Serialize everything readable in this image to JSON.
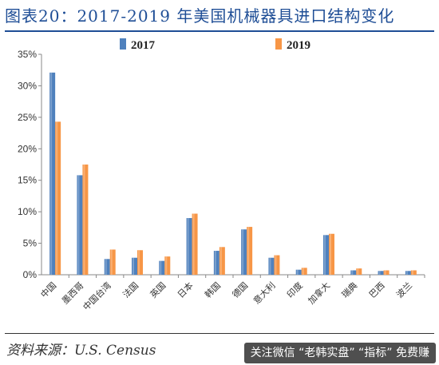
{
  "page": {
    "title": "图表20：2017-2019 年美国机械器具进口结构变化"
  },
  "footer": {
    "source": "资料来源：U.S. Census",
    "watermark": "关注微信 “老韩实盘” “指标” 免费赚"
  },
  "colors": {
    "series_2017": "#4f81bd",
    "series_2019": "#f79646",
    "title": "#1f4e96"
  },
  "chart_data": {
    "type": "bar",
    "title": "图表20：2017-2019 年美国机械器具进口结构变化",
    "xlabel": "",
    "ylabel": "",
    "ylim": [
      0,
      35
    ],
    "yticks": [
      "0%",
      "5%",
      "10%",
      "15%",
      "20%",
      "25%",
      "30%",
      "35%"
    ],
    "ytick_values": [
      0,
      5,
      10,
      15,
      20,
      25,
      30,
      35
    ],
    "legend_position": "top-center",
    "grid": false,
    "categories": [
      "中国",
      "墨西哥",
      "中国台湾",
      "法国",
      "英国",
      "日本",
      "韩国",
      "德国",
      "意大利",
      "印度",
      "加拿大",
      "瑞典",
      "巴西",
      "波兰"
    ],
    "series": [
      {
        "name": "2017",
        "values": [
          32.1,
          15.8,
          2.5,
          2.7,
          2.2,
          9.0,
          3.8,
          7.2,
          2.7,
          0.8,
          6.3,
          0.7,
          0.6,
          0.6
        ]
      },
      {
        "name": "2019",
        "values": [
          24.3,
          17.5,
          4.0,
          3.9,
          2.9,
          9.7,
          4.4,
          7.6,
          3.1,
          1.1,
          6.5,
          1.0,
          0.7,
          0.7
        ]
      }
    ]
  }
}
